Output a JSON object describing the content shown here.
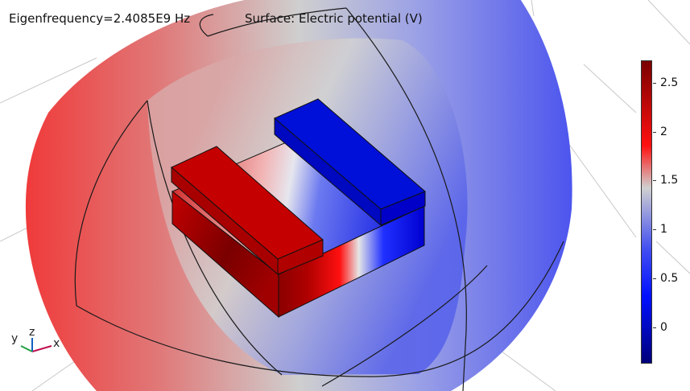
{
  "header": {
    "eigenfrequency": "Eigenfrequency=2.4085E9 Hz",
    "plot_title": "Surface: Electric potential (V)"
  },
  "colorbar": {
    "ticks": [
      "2.5",
      "2",
      "1.5",
      "1",
      "0.5",
      "0"
    ],
    "colors": [
      "#7a0000",
      "#ff1010",
      "#d0d0d0",
      "#1020ff",
      "#00007a"
    ]
  },
  "axes": {
    "x": "x",
    "y": "y",
    "z": "z"
  },
  "colors": {
    "positive": "#c00000",
    "negative": "#0000c0",
    "neutral": "#d6d6d6"
  }
}
